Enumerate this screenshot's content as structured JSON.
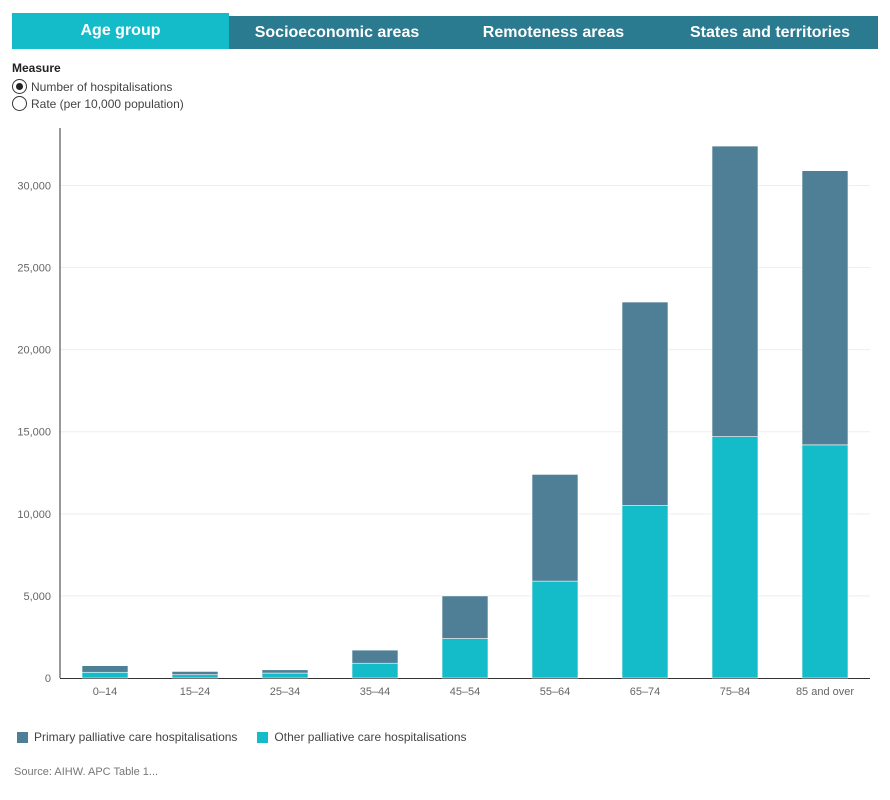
{
  "tabs": [
    {
      "label": "Age group",
      "active": true
    },
    {
      "label": "Socioeconomic areas",
      "active": false
    },
    {
      "label": "Remoteness areas",
      "active": false
    },
    {
      "label": "States and territories",
      "active": false
    }
  ],
  "measure": {
    "title": "Measure",
    "options": [
      {
        "label": "Number of hospitalisations",
        "selected": true
      },
      {
        "label": "Rate (per 10,000 population)",
        "selected": false
      }
    ]
  },
  "colors": {
    "primary": "#4f7f96",
    "other": "#14bcc9",
    "tab_active": "#14bcc9",
    "tab_inactive": "#2a7a90"
  },
  "chart_data": {
    "type": "bar",
    "stacked": true,
    "categories": [
      "0–14",
      "15–24",
      "25–34",
      "35–44",
      "45–54",
      "55–64",
      "65–74",
      "75–84",
      "85 and over"
    ],
    "series": [
      {
        "name": "Other palliative care hospitalisations",
        "values": [
          350,
          200,
          300,
          900,
          2400,
          5900,
          10500,
          14700,
          14200
        ]
      },
      {
        "name": "Primary palliative care hospitalisations",
        "values": [
          400,
          200,
          200,
          800,
          2600,
          6500,
          12400,
          17700,
          16700
        ]
      }
    ],
    "yticks": [
      0,
      5000,
      10000,
      15000,
      20000,
      25000,
      30000
    ],
    "ytick_labels": [
      "0",
      "5,000",
      "10,000",
      "15,000",
      "20,000",
      "25,000",
      "30,000"
    ],
    "ylim": [
      0,
      33500
    ],
    "grid": true,
    "legend_position": "bottom-left"
  },
  "legend": [
    {
      "label": "Primary palliative care hospitalisations",
      "color": "#4f7f96"
    },
    {
      "label": "Other palliative care hospitalisations",
      "color": "#14bcc9"
    }
  ],
  "source": "Source: AIHW. APC Table 1..."
}
